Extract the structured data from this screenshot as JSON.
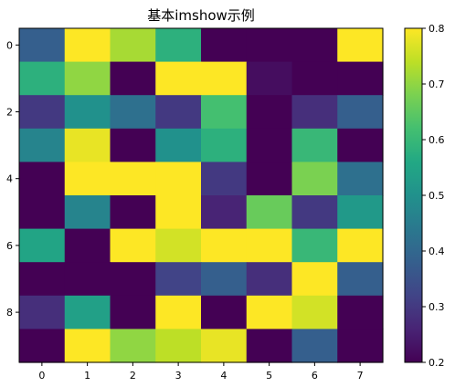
{
  "chart_data": {
    "type": "heatmap",
    "title": "基本imshow示例",
    "x_ticks": [
      "0",
      "1",
      "2",
      "3",
      "4",
      "5",
      "6",
      "7"
    ],
    "y_ticks": [
      "0",
      "2",
      "4",
      "6",
      "8"
    ],
    "y_tick_rows": [
      0,
      2,
      4,
      6,
      8
    ],
    "rows": 10,
    "cols": 8,
    "values": [
      [
        0.38,
        0.8,
        0.72,
        0.58,
        0.2,
        0.2,
        0.2,
        0.8
      ],
      [
        0.58,
        0.7,
        0.2,
        0.8,
        0.8,
        0.22,
        0.2,
        0.2
      ],
      [
        0.3,
        0.5,
        0.42,
        0.3,
        0.62,
        0.2,
        0.28,
        0.38
      ],
      [
        0.47,
        0.78,
        0.2,
        0.5,
        0.58,
        0.2,
        0.6,
        0.2
      ],
      [
        0.2,
        0.8,
        0.8,
        0.8,
        0.3,
        0.2,
        0.68,
        0.42
      ],
      [
        0.2,
        0.47,
        0.2,
        0.8,
        0.26,
        0.66,
        0.3,
        0.52
      ],
      [
        0.55,
        0.2,
        0.8,
        0.76,
        0.8,
        0.8,
        0.6,
        0.8
      ],
      [
        0.2,
        0.2,
        0.2,
        0.32,
        0.38,
        0.28,
        0.8,
        0.38
      ],
      [
        0.28,
        0.54,
        0.2,
        0.8,
        0.2,
        0.8,
        0.76,
        0.2
      ],
      [
        0.2,
        0.8,
        0.7,
        0.74,
        0.78,
        0.2,
        0.38,
        0.2
      ]
    ],
    "vmin": 0.2,
    "vmax": 0.8,
    "colormap": "viridis",
    "colorbar_ticks": [
      "0.2",
      "0.3",
      "0.4",
      "0.5",
      "0.6",
      "0.7",
      "0.8"
    ],
    "colorbar_tick_values": [
      0.2,
      0.3,
      0.4,
      0.5,
      0.6,
      0.7,
      0.8
    ]
  }
}
